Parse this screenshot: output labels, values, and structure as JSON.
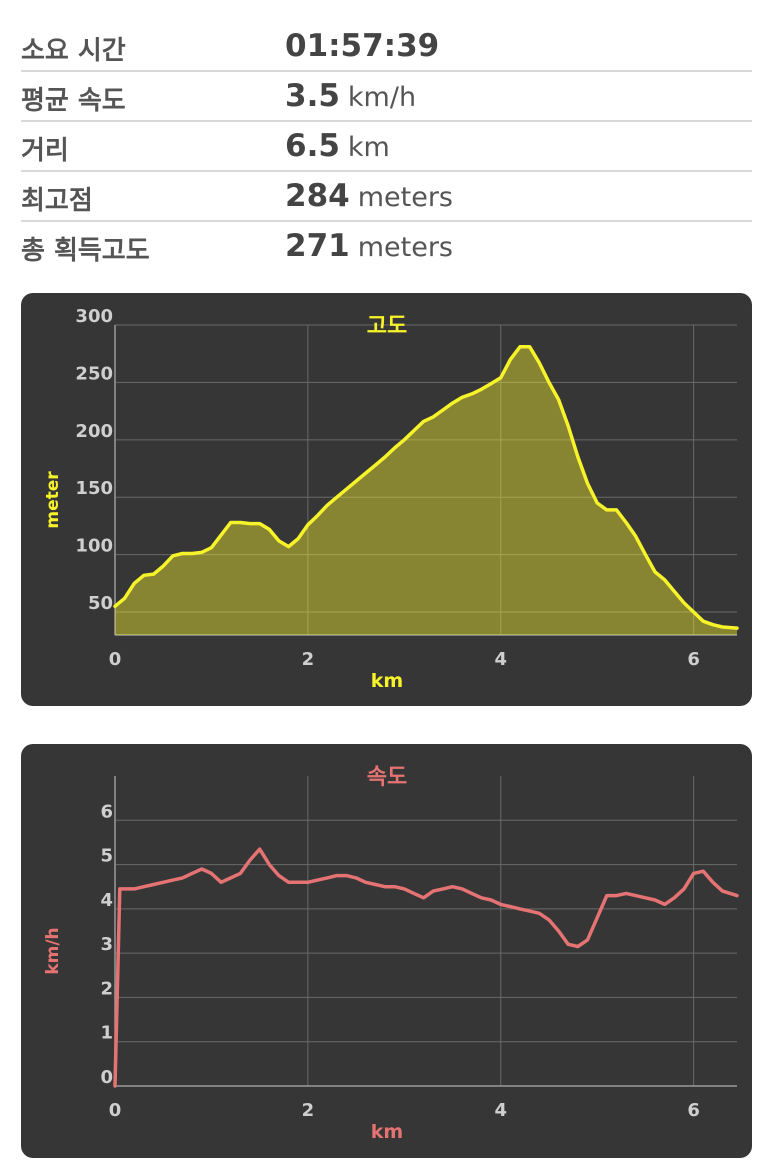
{
  "stats": [
    {
      "label": "소요 시간",
      "value": "01:57:39",
      "unit": ""
    },
    {
      "label": "평균 속도",
      "value": "3.5",
      "unit": "km/h"
    },
    {
      "label": "거리",
      "value": "6.5",
      "unit": "km"
    },
    {
      "label": "최고점",
      "value": "284",
      "unit": "meters"
    },
    {
      "label": "총 획득고도",
      "value": "271",
      "unit": "meters"
    }
  ],
  "colors": {
    "card_bg": "#363636",
    "elevation": "#f7f32a",
    "speed": "#e57373",
    "tick_label": "#cfcfcf",
    "grid": "#6a6a6a"
  },
  "chart_data": [
    {
      "type": "area",
      "title": "고도",
      "xlabel": "km",
      "ylabel": "meter",
      "xlim": [
        0,
        6.45
      ],
      "ylim": [
        30,
        300
      ],
      "x_ticks": [
        "0",
        "2",
        "4",
        "6"
      ],
      "y_ticks": [
        "50",
        "100",
        "150",
        "200",
        "250",
        "300"
      ],
      "grid": true,
      "series": [
        {
          "x": [
            0,
            0.1,
            0.2,
            0.3,
            0.4,
            0.5,
            0.6,
            0.7,
            0.8,
            0.9,
            1.0,
            1.1,
            1.2,
            1.3,
            1.4,
            1.5,
            1.6,
            1.7,
            1.8,
            1.9,
            2.0,
            2.1,
            2.2,
            2.3,
            2.4,
            2.5,
            2.6,
            2.7,
            2.8,
            2.9,
            3.0,
            3.1,
            3.2,
            3.3,
            3.4,
            3.5,
            3.6,
            3.7,
            3.8,
            3.9,
            4.0,
            4.05,
            4.1,
            4.2,
            4.3,
            4.4,
            4.5,
            4.6,
            4.7,
            4.8,
            4.9,
            5.0,
            5.1,
            5.2,
            5.3,
            5.4,
            5.5,
            5.6,
            5.7,
            5.8,
            5.9,
            6.0,
            6.1,
            6.2,
            6.3,
            6.45
          ],
          "y": [
            55,
            62,
            75,
            82,
            83,
            90,
            99,
            101,
            101,
            102,
            106,
            117,
            128,
            128,
            127,
            127,
            122,
            112,
            107,
            114,
            126,
            134,
            143,
            150,
            157,
            164,
            171,
            178,
            185,
            193,
            200,
            208,
            216,
            220,
            226,
            232,
            237,
            240,
            244,
            249,
            254,
            262,
            270,
            281,
            281,
            267,
            250,
            235,
            212,
            185,
            162,
            145,
            139,
            139,
            128,
            116,
            100,
            85,
            78,
            68,
            58,
            50,
            42,
            39,
            37,
            36
          ]
        }
      ]
    },
    {
      "type": "line",
      "title": "속도",
      "xlabel": "km",
      "ylabel": "km/h",
      "xlim": [
        0,
        6.45
      ],
      "ylim": [
        0,
        7
      ],
      "x_ticks": [
        "0",
        "2",
        "4",
        "6"
      ],
      "y_ticks": [
        "0",
        "1",
        "2",
        "3",
        "4",
        "5",
        "6"
      ],
      "grid": true,
      "series": [
        {
          "x": [
            0,
            0.05,
            0.1,
            0.2,
            0.3,
            0.4,
            0.5,
            0.6,
            0.7,
            0.8,
            0.9,
            1.0,
            1.1,
            1.2,
            1.3,
            1.4,
            1.5,
            1.6,
            1.7,
            1.8,
            1.9,
            2.0,
            2.1,
            2.2,
            2.3,
            2.4,
            2.5,
            2.6,
            2.7,
            2.8,
            2.9,
            3.0,
            3.1,
            3.2,
            3.3,
            3.4,
            3.5,
            3.6,
            3.7,
            3.8,
            3.9,
            4.0,
            4.1,
            4.2,
            4.3,
            4.4,
            4.5,
            4.6,
            4.7,
            4.8,
            4.9,
            5.0,
            5.1,
            5.2,
            5.3,
            5.4,
            5.5,
            5.6,
            5.7,
            5.8,
            5.9,
            6.0,
            6.1,
            6.2,
            6.3,
            6.45
          ],
          "y": [
            0,
            4.45,
            4.45,
            4.45,
            4.5,
            4.55,
            4.6,
            4.65,
            4.7,
            4.8,
            4.9,
            4.8,
            4.6,
            4.7,
            4.8,
            5.1,
            5.35,
            5.0,
            4.75,
            4.6,
            4.6,
            4.6,
            4.65,
            4.7,
            4.75,
            4.75,
            4.7,
            4.6,
            4.55,
            4.5,
            4.5,
            4.45,
            4.35,
            4.25,
            4.4,
            4.45,
            4.5,
            4.45,
            4.35,
            4.25,
            4.2,
            4.1,
            4.05,
            4.0,
            3.95,
            3.9,
            3.75,
            3.5,
            3.2,
            3.15,
            3.3,
            3.8,
            4.3,
            4.3,
            4.35,
            4.3,
            4.25,
            4.2,
            4.1,
            4.25,
            4.45,
            4.8,
            4.85,
            4.6,
            4.4,
            4.3
          ]
        }
      ]
    }
  ]
}
